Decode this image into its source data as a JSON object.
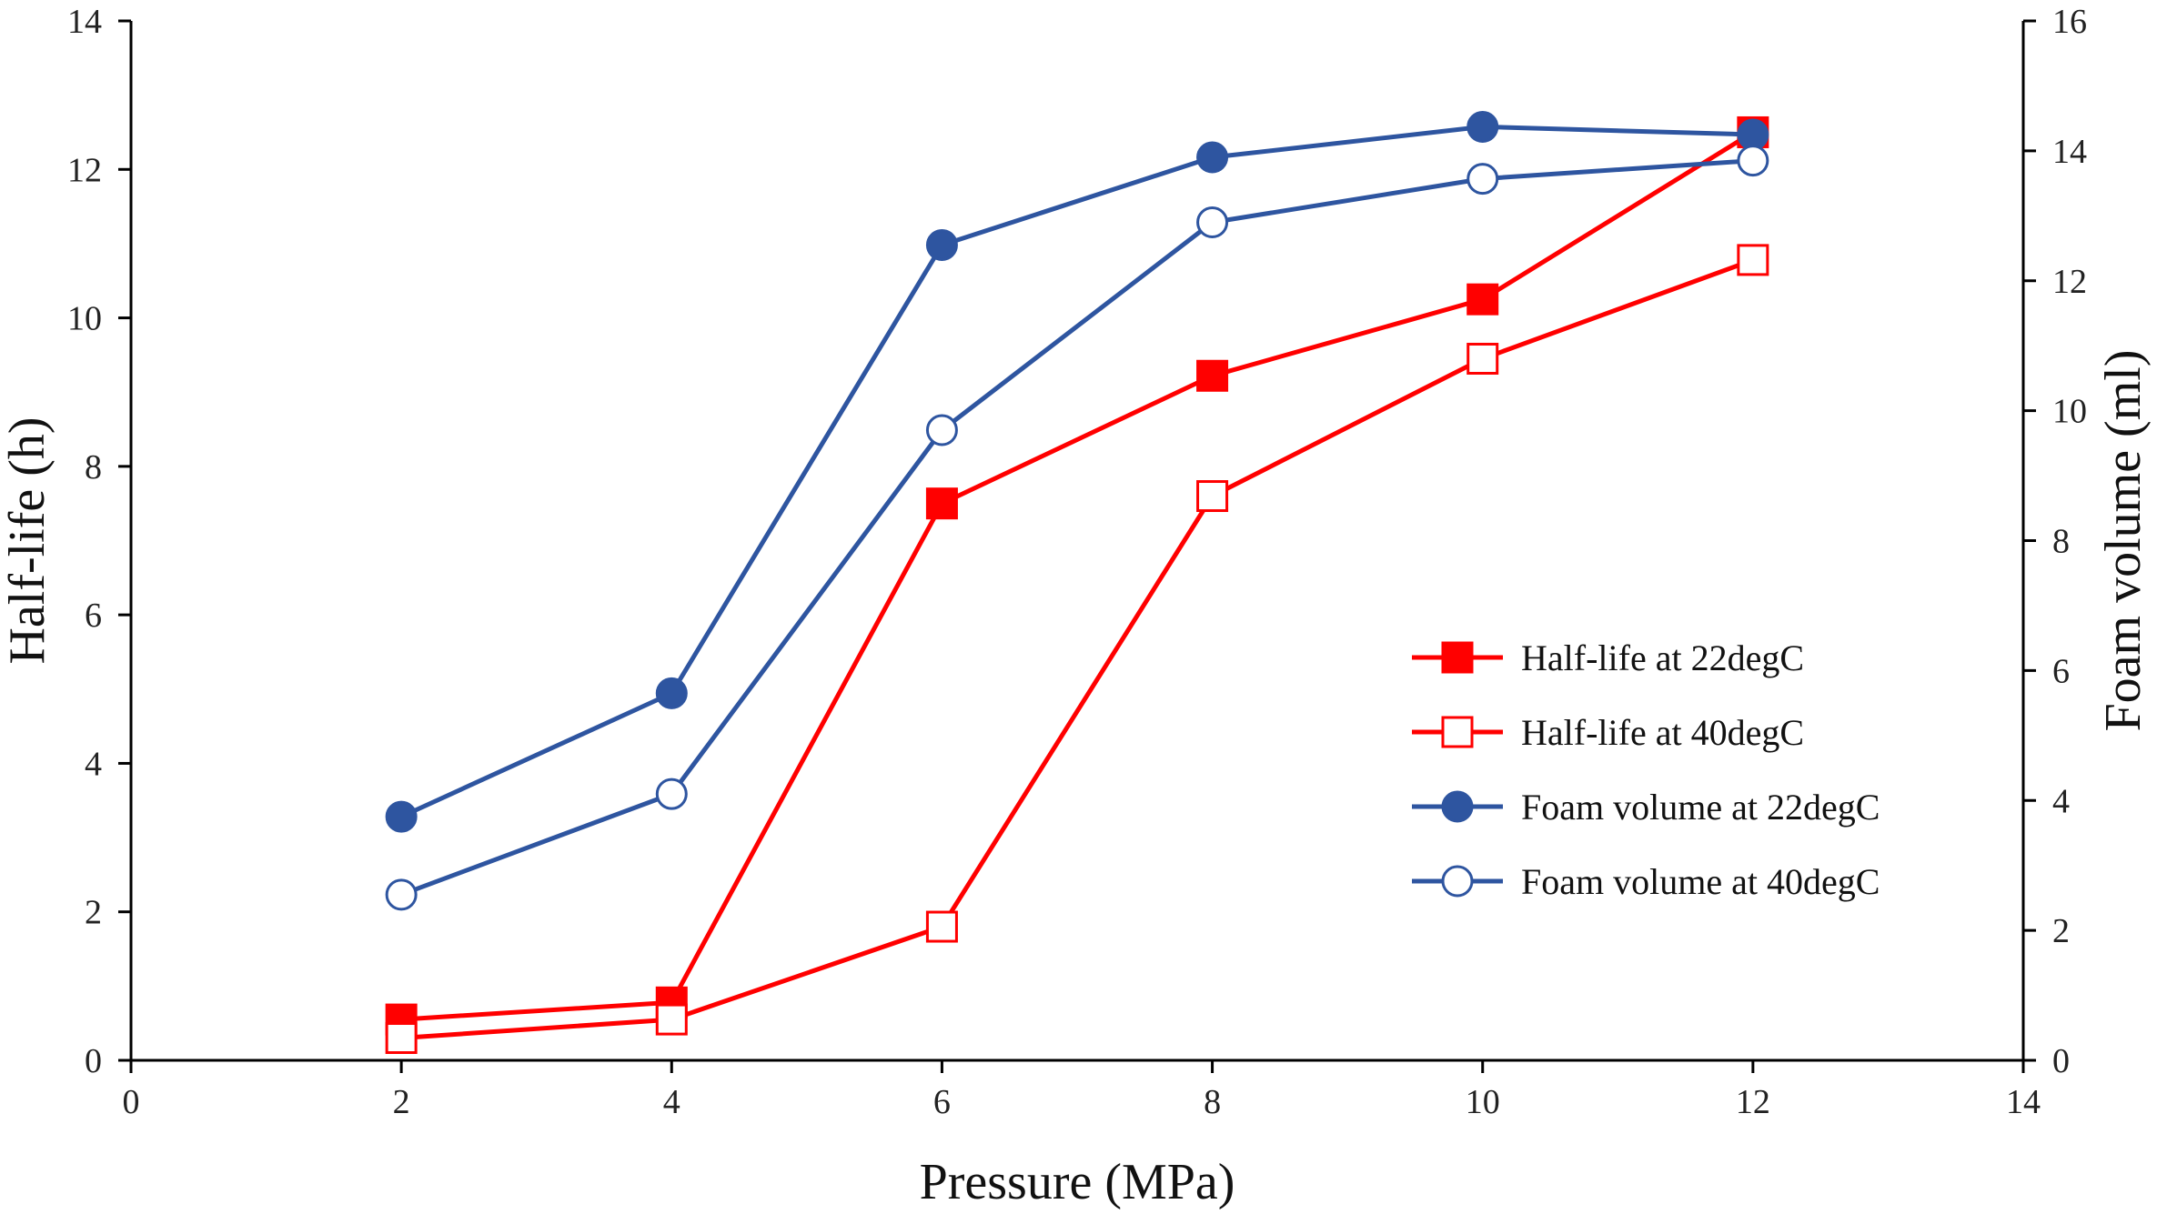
{
  "chart_data": {
    "type": "line",
    "xlabel": "Pressure (MPa)",
    "ylabel": "Half-life (h)",
    "y2label": "Foam volume (ml)",
    "xlim": [
      0,
      14
    ],
    "ylim": [
      0,
      14
    ],
    "y2lim": [
      0,
      16
    ],
    "x_ticks": [
      0,
      2,
      4,
      6,
      8,
      10,
      12,
      14
    ],
    "y_ticks": [
      0,
      2,
      4,
      6,
      8,
      10,
      12,
      14
    ],
    "y2_ticks": [
      0,
      2,
      4,
      6,
      8,
      10,
      12,
      14,
      16
    ],
    "grid": false,
    "legend_position": "center-right",
    "x": [
      2,
      4,
      6,
      8,
      10,
      12
    ],
    "series": [
      {
        "name": "Half-life at 22degC",
        "axis": "left",
        "color": "#ff0000",
        "marker": "square",
        "filled": true,
        "values": [
          0.55,
          0.78,
          7.5,
          9.22,
          10.25,
          12.5
        ]
      },
      {
        "name": "Half-life at 40degC",
        "axis": "left",
        "color": "#ff0000",
        "marker": "square",
        "filled": false,
        "values": [
          0.3,
          0.55,
          1.8,
          7.6,
          9.45,
          10.78
        ]
      },
      {
        "name": "Foam volume at 22degC",
        "axis": "right",
        "color": "#2e55a0",
        "marker": "circle",
        "filled": true,
        "values": [
          3.75,
          5.65,
          12.55,
          13.9,
          14.37,
          14.25
        ]
      },
      {
        "name": "Foam volume at 40degC",
        "axis": "right",
        "color": "#2e55a0",
        "marker": "circle",
        "filled": false,
        "values": [
          2.55,
          4.1,
          9.7,
          12.9,
          13.57,
          13.85
        ]
      }
    ]
  }
}
